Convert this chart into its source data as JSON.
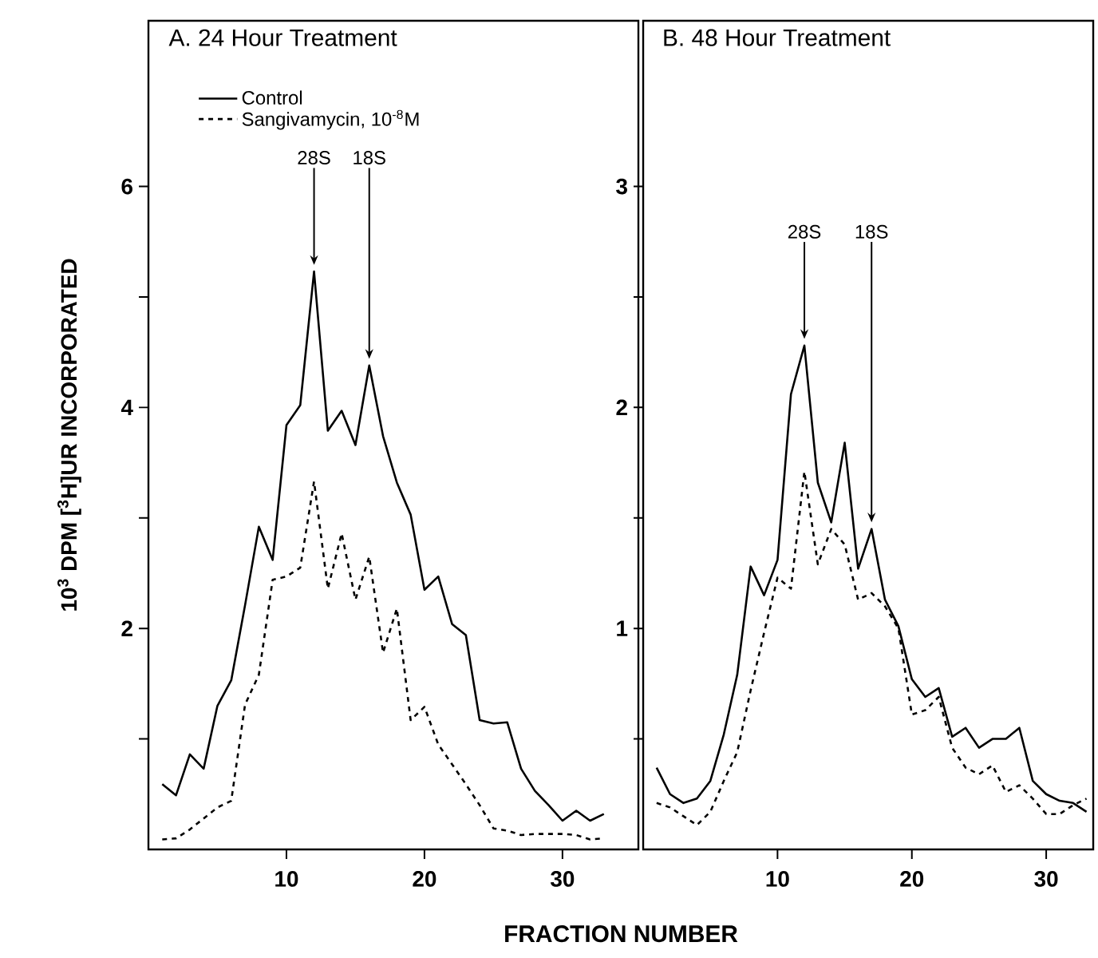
{
  "chart_data": [
    {
      "type": "line",
      "title": "A. 24 Hour Treatment",
      "xlabel": "FRACTION NUMBER",
      "ylabel": "10$^{3}$ DPM [$^{3}$H]UR INCORPORATED",
      "x": [
        1,
        2,
        3,
        4,
        5,
        6,
        7,
        8,
        9,
        10,
        11,
        12,
        13,
        14,
        15,
        16,
        17,
        18,
        19,
        20,
        21,
        22,
        23,
        24,
        25,
        26,
        27,
        28,
        29,
        30,
        31,
        32,
        33
      ],
      "series": [
        {
          "name": "Control",
          "color": "#000000",
          "line_style": "solid",
          "values": [
            0.59,
            0.49,
            0.86,
            0.73,
            1.3,
            1.53,
            2.21,
            2.92,
            2.62,
            3.84,
            4.02,
            5.23,
            3.79,
            3.97,
            3.66,
            4.38,
            3.74,
            3.32,
            3.03,
            2.35,
            2.47,
            2.04,
            1.94,
            1.17,
            1.14,
            1.15,
            0.73,
            0.53,
            0.4,
            0.26,
            0.35,
            0.26,
            0.32
          ]
        },
        {
          "name": "Sangivamycin, 10$^{-8}$M",
          "color": "#000000",
          "line_style": "dashed",
          "values": [
            0.09,
            0.1,
            0.18,
            0.28,
            0.38,
            0.44,
            1.31,
            1.58,
            2.44,
            2.47,
            2.55,
            3.33,
            2.36,
            2.86,
            2.26,
            2.65,
            1.78,
            2.18,
            1.17,
            1.29,
            0.95,
            0.77,
            0.59,
            0.4,
            0.19,
            0.17,
            0.13,
            0.14,
            0.14,
            0.14,
            0.13,
            0.09,
            0.1
          ]
        }
      ],
      "xlim": [
        0,
        35.5
      ],
      "ylim": [
        0,
        7.5
      ],
      "xticks": [
        10,
        20,
        30
      ],
      "yticks": [
        {
          "value": 1,
          "label": null
        },
        2,
        {
          "value": 3,
          "label": null
        },
        4,
        {
          "value": 5,
          "label": null
        },
        6
      ],
      "legend": "top left",
      "annotations": [
        {
          "text": "28S",
          "x": 12,
          "y": 5.23
        },
        {
          "text": "18S",
          "x": 16,
          "y": 4.38
        }
      ]
    },
    {
      "type": "line",
      "title": "B. 48 Hour Treatment",
      "x": [
        1,
        2,
        3,
        4,
        5,
        6,
        7,
        8,
        9,
        10,
        11,
        12,
        13,
        14,
        15,
        16,
        17,
        18,
        19,
        20,
        21,
        22,
        23,
        24,
        25,
        26,
        27,
        28,
        29,
        30,
        31,
        32,
        33
      ],
      "series": [
        {
          "color": "#000000",
          "line_style": "solid",
          "values": [
            0.37,
            0.25,
            0.21,
            0.23,
            0.31,
            0.52,
            0.79,
            1.28,
            1.15,
            1.31,
            2.06,
            2.28,
            1.66,
            1.48,
            1.84,
            1.27,
            1.45,
            1.13,
            1.01,
            0.77,
            0.69,
            0.73,
            0.51,
            0.55,
            0.46,
            0.5,
            0.5,
            0.55,
            0.31,
            0.25,
            0.22,
            0.21,
            0.17
          ]
        },
        {
          "color": "#000000",
          "line_style": "dashed",
          "values": [
            0.21,
            0.19,
            0.15,
            0.11,
            0.17,
            0.31,
            0.44,
            0.72,
            0.98,
            1.23,
            1.18,
            1.71,
            1.29,
            1.45,
            1.38,
            1.13,
            1.16,
            1.1,
            1.0,
            0.61,
            0.63,
            0.69,
            0.46,
            0.37,
            0.34,
            0.38,
            0.26,
            0.29,
            0.23,
            0.16,
            0.16,
            0.2,
            0.23
          ]
        }
      ],
      "xlim": [
        0,
        33.5
      ],
      "ylim": [
        0,
        3.75
      ],
      "xticks": [
        10,
        20,
        30
      ],
      "yticks": [
        {
          "value": 0.5,
          "label": null
        },
        1,
        {
          "value": 1.5,
          "label": null
        },
        2,
        {
          "value": 2.5,
          "label": null
        },
        3
      ],
      "annotations": [
        {
          "text": "28S",
          "x": 12,
          "y": 2.28
        },
        {
          "text": "18S",
          "x": 17,
          "y": 1.45
        }
      ]
    }
  ]
}
